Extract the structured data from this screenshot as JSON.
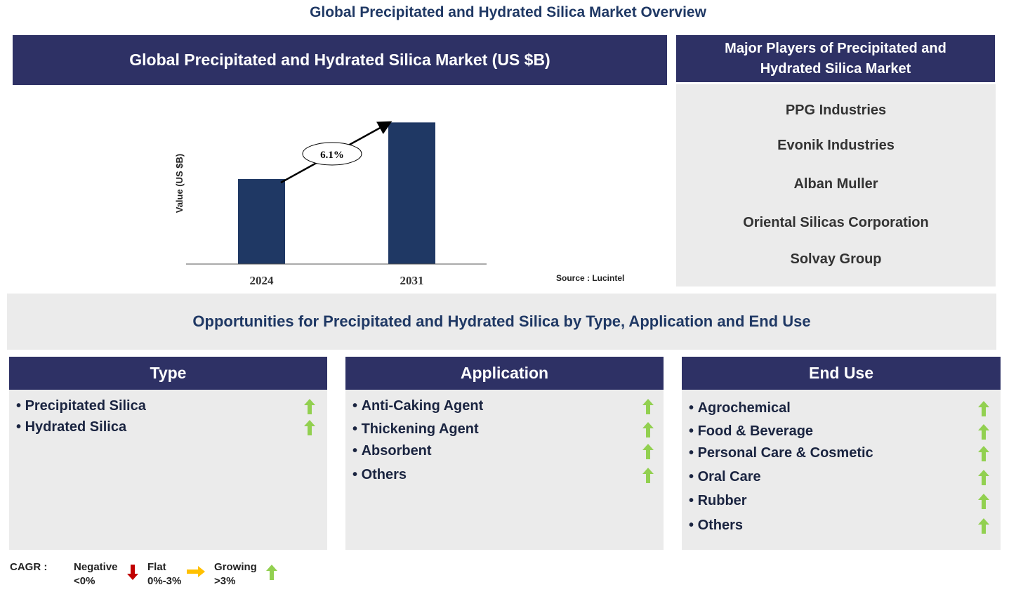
{
  "title": "Global Precipitated and Hydrated Silica Market Overview",
  "chart_data": {
    "type": "bar",
    "title": "Global Precipitated and Hydrated Silica Market (US $B)",
    "ylabel": "Value (US $B)",
    "categories": [
      "2024",
      "2031"
    ],
    "values": [
      3,
      5
    ],
    "color": "#1f3864",
    "ylim": [
      0,
      6
    ],
    "annotation": "6.1%",
    "source": "Source : Lucintel"
  },
  "players": {
    "title": "Major Players of Precipitated and Hydrated Silica Market",
    "items": [
      "PPG Industries",
      "Evonik Industries",
      "Alban Muller",
      "Oriental Silicas Corporation",
      "Solvay Group"
    ]
  },
  "opportunities": {
    "title": "Opportunities for Precipitated and Hydrated Silica by Type, Application and End Use",
    "panels": [
      {
        "title": "Type",
        "items": [
          "Precipitated Silica",
          "Hydrated Silica"
        ]
      },
      {
        "title": "Application",
        "items": [
          "Anti-Caking Agent",
          "Thickening Agent",
          "Absorbent",
          "Others"
        ]
      },
      {
        "title": "End Use",
        "items": [
          "Agrochemical",
          "Food & Beverage",
          "Personal Care & Cosmetic",
          "Oral Care",
          "Rubber",
          "Others"
        ]
      }
    ]
  },
  "legend": {
    "label": "CAGR :",
    "items": [
      {
        "label": "Negative",
        "range": "<0%"
      },
      {
        "label": "Flat",
        "range": "0%-3%"
      },
      {
        "label": "Growing",
        "range": ">3%"
      }
    ]
  }
}
